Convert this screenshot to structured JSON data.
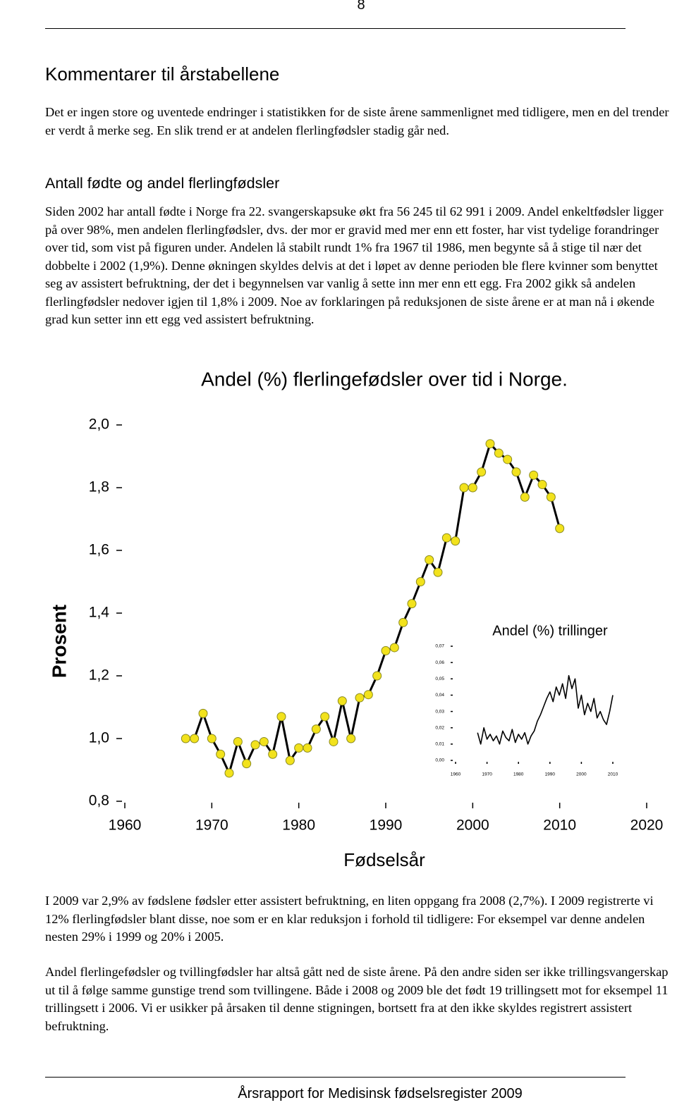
{
  "page_number": "8",
  "heading": "Kommentarer til årstabellene",
  "intro": "Det er ingen store og uventede endringer i statistikken for de siste årene sammenlignet med tidligere, men en del trender er verdt å merke seg. En slik trend er at andelen flerlingfødsler stadig går ned.",
  "section_title": "Antall fødte og andel flerlingfødsler",
  "section_text": "Siden 2002 har antall fødte i Norge fra 22. svangerskapsuke økt fra 56 245 til 62 991 i 2009. Andel enkeltfødsler ligger på over 98%, men andelen flerlingfødsler, dvs. der mor er gravid med mer enn ett foster, har vist tydelige forandringer over tid, som vist på figuren under. Andelen lå stabilt rundt 1% fra 1967 til 1986, men begynte så å stige til nær det dobbelte i 2002 (1,9%). Denne økningen skyldes delvis at det i løpet av denne perioden ble flere kvinner som benyttet seg av assistert befruktning, der det i begynnelsen var vanlig å sette inn mer enn ett egg. Fra 2002 gikk så andelen flerlingfødsler nedover igjen til 1,8% i 2009. Noe av forklaringen på reduksjonen de siste årene er at man nå i økende grad kun setter inn ett egg ved assistert befruktning.",
  "chart_data": [
    {
      "type": "line",
      "title": "Andel (%) flerlingefødsler over tid i Norge.",
      "x_label": "Fødselsår",
      "y_label": "Prosent",
      "x": [
        1967,
        1968,
        1969,
        1970,
        1971,
        1972,
        1973,
        1974,
        1975,
        1976,
        1977,
        1978,
        1979,
        1980,
        1981,
        1982,
        1983,
        1984,
        1985,
        1986,
        1987,
        1988,
        1989,
        1990,
        1991,
        1992,
        1993,
        1994,
        1995,
        1996,
        1997,
        1998,
        1999,
        2000,
        2001,
        2002,
        2003,
        2004,
        2005,
        2006,
        2007,
        2008,
        2009,
        2010
      ],
      "series": [
        {
          "color": "#000000",
          "marker_color": "#f2e21c",
          "values": [
            1.0,
            1.0,
            1.08,
            1.0,
            0.95,
            0.89,
            0.99,
            0.92,
            0.98,
            0.99,
            0.95,
            1.07,
            0.93,
            0.97,
            0.97,
            1.03,
            1.07,
            0.99,
            1.12,
            1.0,
            1.13,
            1.14,
            1.2,
            1.28,
            1.29,
            1.37,
            1.43,
            1.5,
            1.57,
            1.53,
            1.64,
            1.63,
            1.8,
            1.8,
            1.85,
            1.94,
            1.91,
            1.89,
            1.85,
            1.77,
            1.84,
            1.81,
            1.77,
            1.67
          ]
        }
      ],
      "xlim": [
        1960,
        2020
      ],
      "xticks": [
        1960,
        1970,
        1980,
        1990,
        2000,
        2010,
        2020
      ],
      "ylim": [
        0.8,
        2.0
      ],
      "yticks": [
        {
          "value": 0.8,
          "label": "0,8"
        },
        {
          "value": 1.0,
          "label": "1,0"
        },
        {
          "value": 1.2,
          "label": "1,2"
        },
        {
          "value": 1.4,
          "label": "1,4"
        },
        {
          "value": 1.6,
          "label": "1,6"
        },
        {
          "value": 1.8,
          "label": "1,8"
        },
        {
          "value": 2.0,
          "label": "2,0"
        }
      ]
    },
    {
      "type": "line",
      "title": "Andel (%) trillinger",
      "x": [
        1967,
        1968,
        1969,
        1970,
        1971,
        1972,
        1973,
        1974,
        1975,
        1976,
        1977,
        1978,
        1979,
        1980,
        1981,
        1982,
        1983,
        1984,
        1985,
        1986,
        1987,
        1988,
        1989,
        1990,
        1991,
        1992,
        1993,
        1994,
        1995,
        1996,
        1997,
        1998,
        1999,
        2000,
        2001,
        2002,
        2003,
        2004,
        2005,
        2006,
        2007,
        2008,
        2009,
        2010
      ],
      "series": [
        {
          "color": "#000000",
          "values": [
            0.017,
            0.01,
            0.02,
            0.013,
            0.016,
            0.012,
            0.015,
            0.01,
            0.018,
            0.014,
            0.012,
            0.019,
            0.011,
            0.016,
            0.013,
            0.017,
            0.01,
            0.015,
            0.018,
            0.024,
            0.028,
            0.033,
            0.038,
            0.042,
            0.036,
            0.045,
            0.04,
            0.047,
            0.038,
            0.052,
            0.044,
            0.05,
            0.032,
            0.04,
            0.028,
            0.035,
            0.03,
            0.038,
            0.026,
            0.03,
            0.025,
            0.022,
            0.03,
            0.04
          ]
        }
      ],
      "xlim": [
        1960,
        2010
      ],
      "xticks": [
        1960,
        1970,
        1980,
        1990,
        2000,
        2010
      ],
      "ylim": [
        0,
        0.07
      ],
      "yticks": [
        {
          "value": 0,
          "label": "0,00"
        },
        {
          "value": 0.01,
          "label": "0,01"
        },
        {
          "value": 0.02,
          "label": "0,02"
        },
        {
          "value": 0.03,
          "label": "0,03"
        },
        {
          "value": 0.04,
          "label": "0,04"
        },
        {
          "value": 0.05,
          "label": "0,05"
        },
        {
          "value": 0.06,
          "label": "0,06"
        },
        {
          "value": 0.07,
          "label": "0,07"
        }
      ]
    }
  ],
  "after_chart": [
    "I 2009 var 2,9% av fødslene fødsler etter assistert befruktning, en liten oppgang fra 2008 (2,7%). I 2009 registrerte vi 12% flerlingfødsler blant disse, noe som er en klar reduksjon i forhold til tidligere: For eksempel var denne andelen nesten 29% i 1999 og 20% i 2005.",
    "Andel flerlingefødsler og tvillingfødsler har altså gått ned de siste årene. På den andre siden ser ikke trillingsvangerskap ut til å følge samme gunstige trend som tvillingene. Både i 2008 og 2009 ble det født 19 trillingsett mot for eksempel 11 trillingsett i 2006. Vi er usikker på årsaken til denne stigningen, bortsett fra at den ikke skyldes registrert assistert befruktning."
  ],
  "footer": "Årsrapport for Medisinsk fødselsregister 2009"
}
